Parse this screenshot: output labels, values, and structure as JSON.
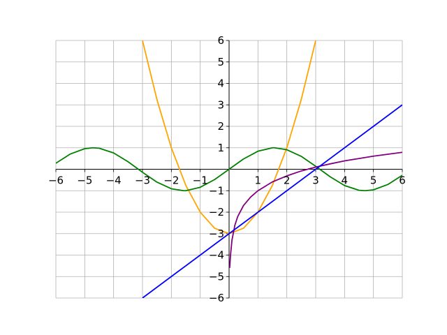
{
  "chart_data": {
    "type": "line",
    "title": "",
    "xlabel": "",
    "ylabel": "",
    "xlim": [
      -6,
      6
    ],
    "ylim": [
      -6,
      6
    ],
    "grid": true,
    "axes_through_origin": true,
    "x_ticks": [
      -6,
      -5,
      -4,
      -3,
      -2,
      -1,
      0,
      1,
      2,
      3,
      4,
      5,
      6
    ],
    "y_ticks": [
      -6,
      -5,
      -4,
      -3,
      -2,
      -1,
      0,
      1,
      2,
      3,
      4,
      5,
      6
    ],
    "x_tick_labels": [
      "−6",
      "−5",
      "−4",
      "−3",
      "−2",
      "−1",
      "",
      "1",
      "2",
      "3",
      "4",
      "5",
      "6"
    ],
    "y_tick_labels": [
      "−6",
      "−5",
      "−4",
      "−3",
      "−2",
      "−1",
      "",
      "1",
      "2",
      "3",
      "4",
      "5",
      "6"
    ],
    "series": [
      {
        "color": "#ffa500",
        "x": [
          -3,
          -2.5,
          -2,
          -1.5,
          -1,
          -0.5,
          0,
          0.5,
          1,
          1.5,
          2,
          2.5,
          3
        ],
        "y": [
          6,
          3.25,
          1,
          -0.75,
          -2,
          -2.75,
          -3,
          -2.75,
          -2,
          -0.75,
          1,
          3.25,
          6
        ]
      },
      {
        "color": "#008000",
        "x": [
          -6,
          -5.5,
          -5,
          -4.712,
          -4.5,
          -4,
          -3.5,
          -3.142,
          -3,
          -2.5,
          -2,
          -1.571,
          -1.5,
          -1,
          -0.5,
          0,
          0.5,
          1,
          1.5,
          1.571,
          2,
          2.5,
          3,
          3.142,
          3.5,
          4,
          4.5,
          4.712,
          5,
          5.5,
          6
        ],
        "y": [
          0.28,
          0.71,
          0.96,
          1,
          0.98,
          0.76,
          0.35,
          0,
          -0.14,
          -0.6,
          -0.91,
          -1,
          -1,
          -0.84,
          -0.48,
          0,
          0.48,
          0.84,
          1,
          1,
          0.91,
          0.6,
          0.14,
          0,
          -0.35,
          -0.76,
          -0.98,
          -1,
          -0.96,
          -0.71,
          -0.28
        ]
      },
      {
        "color": "#800080",
        "x": [
          0.02,
          0.05,
          0.1,
          0.2,
          0.3,
          0.5,
          0.75,
          1,
          1.5,
          2,
          2.5,
          3,
          3.5,
          4,
          4.5,
          5,
          5.5,
          6
        ],
        "y": [
          -4.6,
          -4,
          -3.3,
          -2.61,
          -2.2,
          -1.69,
          -1.29,
          -1,
          -0.59,
          -0.31,
          -0.08,
          0.1,
          0.25,
          0.39,
          0.5,
          0.61,
          0.7,
          0.79
        ]
      },
      {
        "color": "#0000ff",
        "x": [
          -3,
          6
        ],
        "y": [
          -6,
          3
        ]
      }
    ]
  }
}
